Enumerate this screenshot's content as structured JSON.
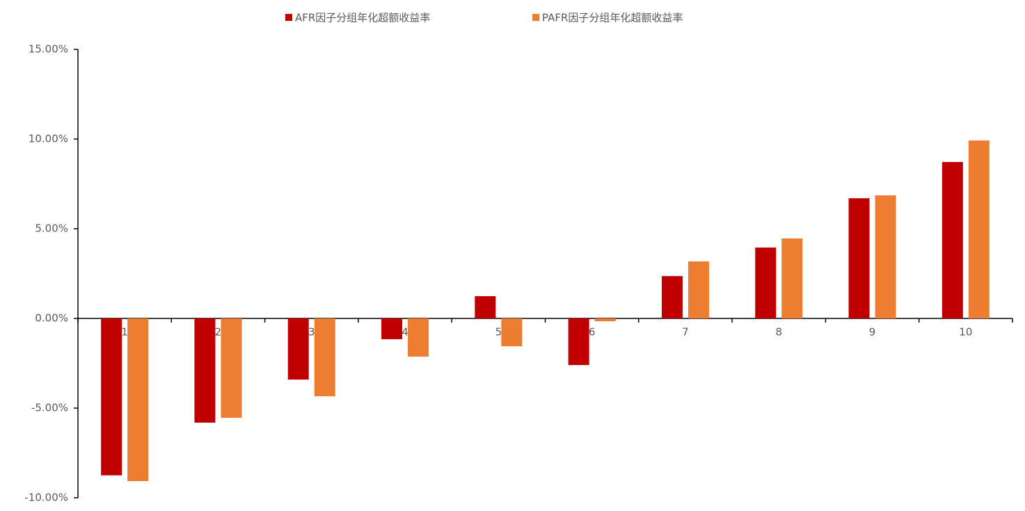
{
  "chart_data": {
    "type": "bar",
    "categories": [
      "1",
      "2",
      "3",
      "4",
      "5",
      "6",
      "7",
      "8",
      "9",
      "10"
    ],
    "series": [
      {
        "name": "AFR因子分组年化超额收益率",
        "color": "#c00000",
        "values": [
          -8.75,
          -5.81,
          -3.41,
          -1.16,
          1.24,
          -2.6,
          2.36,
          3.95,
          6.7,
          8.72
        ]
      },
      {
        "name": "PAFR因子分组年化超额收益率",
        "color": "#ed7d31",
        "values": [
          -9.07,
          -5.54,
          -4.34,
          -2.13,
          -1.55,
          -0.16,
          3.18,
          4.46,
          6.86,
          9.92
        ]
      }
    ],
    "ylim": [
      -10,
      15
    ],
    "yticks": [
      {
        "value": -10,
        "label": "-10.00%"
      },
      {
        "value": -5,
        "label": "-5.00%"
      },
      {
        "value": 0,
        "label": "0.00%"
      },
      {
        "value": 5,
        "label": "5.00%"
      },
      {
        "value": 10,
        "label": "10.00%"
      },
      {
        "value": 15,
        "label": "15.00%"
      }
    ],
    "legend": "top"
  }
}
